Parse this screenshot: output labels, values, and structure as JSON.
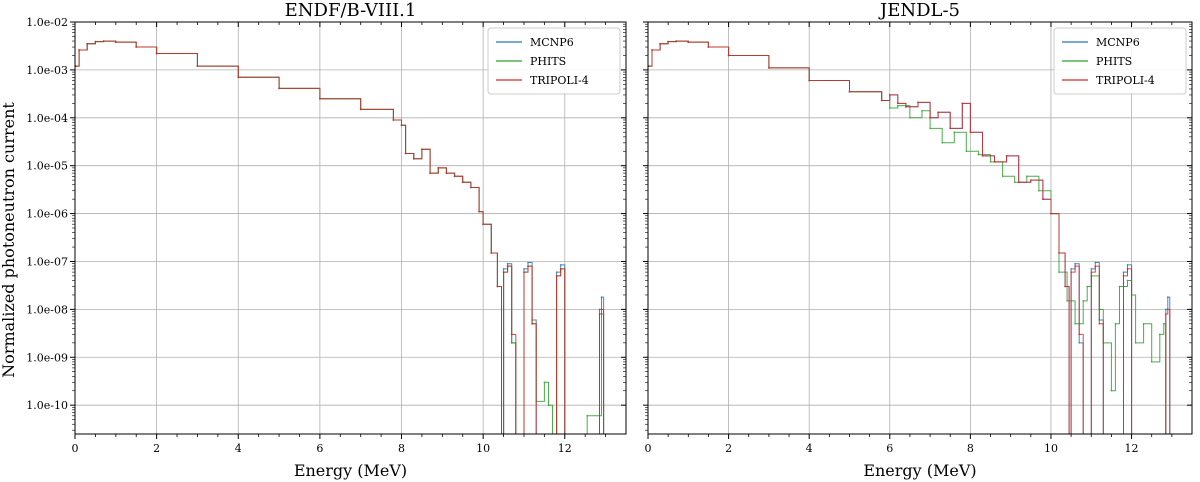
{
  "ylabel": "Normalized photoneutron current",
  "colors": {
    "MCNP6": "#1f77b4",
    "PHITS": "#2ca02c",
    "TRIPOLI-4": "#d62728"
  },
  "chart_data": [
    {
      "type": "line",
      "title": "ENDF/B-VIII.1",
      "xlabel": "Energy (MeV)",
      "ylabel": "Normalized photoneutron current",
      "xlim": [
        0,
        13.5
      ],
      "ylim": [
        2.5e-11,
        0.01
      ],
      "yscale": "log",
      "grid": true,
      "legend_position": "top-right",
      "xticks": [
        "0",
        "2",
        "4",
        "6",
        "8",
        "10",
        "12"
      ],
      "yticks": [
        "1.0e-10",
        "1.0e-09",
        "1.0e-08",
        "1.0e-07",
        "1.0e-06",
        "1.0e-05",
        "1.0e-04",
        "1.0e-03",
        "1.0e-02"
      ],
      "series": [
        {
          "name": "MCNP6",
          "x": [
            0.02,
            0.1,
            0.3,
            0.5,
            0.7,
            1,
            1.5,
            2,
            3,
            4,
            5,
            6,
            7,
            7.8,
            8,
            8.1,
            8.3,
            8.5,
            8.7,
            8.9,
            9.1,
            9.3,
            9.5,
            9.7,
            9.9,
            10,
            10.2,
            10.35,
            10.45,
            10.5,
            10.6,
            10.7,
            10.8,
            11,
            11.1,
            11.2,
            11.3,
            11.7,
            11.8,
            11.9,
            12.0,
            12.8,
            12.85,
            12.9,
            12.95
          ],
          "y": [
            0.0012,
            0.0026,
            0.0035,
            0.0039,
            0.004,
            0.0038,
            0.003,
            0.0022,
            0.0012,
            0.0007,
            0.00041,
            0.00025,
            0.00015,
            9e-05,
            7e-05,
            1.8e-05,
            1.4e-05,
            2.2e-05,
            7e-06,
            9e-06,
            7e-06,
            6e-06,
            4.5e-06,
            3.5e-06,
            1.1e-06,
            6e-07,
            1.5e-07,
            3e-08,
            2e-11,
            7e-08,
            9e-08,
            2e-09,
            2e-11,
            7e-08,
            9.5e-08,
            6e-09,
            2e-11,
            2e-11,
            6e-08,
            8.5e-08,
            2e-11,
            2e-11,
            1e-08,
            1.8e-08,
            2e-11
          ]
        },
        {
          "name": "PHITS",
          "x": [
            0.02,
            0.1,
            0.3,
            0.5,
            0.7,
            1,
            1.5,
            2,
            3,
            4,
            5,
            6,
            7,
            7.8,
            8,
            8.1,
            8.3,
            8.5,
            8.7,
            8.9,
            9.1,
            9.3,
            9.5,
            9.7,
            9.9,
            10,
            10.2,
            10.35,
            10.45,
            10.5,
            10.6,
            10.7,
            10.8,
            11,
            11.1,
            11.2,
            11.3,
            11.5,
            11.6,
            11.7,
            11.8,
            11.9,
            12.0,
            12.5,
            12.55,
            12.9,
            12.95
          ],
          "y": [
            0.0012,
            0.0026,
            0.0035,
            0.0039,
            0.004,
            0.0038,
            0.003,
            0.0022,
            0.0012,
            0.0007,
            0.00041,
            0.00025,
            0.00015,
            9e-05,
            7e-05,
            1.8e-05,
            1.4e-05,
            2.2e-05,
            7e-06,
            9e-06,
            7e-06,
            6e-06,
            4.5e-06,
            3.5e-06,
            1.1e-06,
            6e-07,
            1.5e-07,
            3e-08,
            2e-11,
            6e-08,
            8e-08,
            2e-09,
            2e-11,
            6e-08,
            8e-08,
            5e-09,
            1.2e-10,
            3e-10,
            1e-10,
            2e-11,
            5e-08,
            7e-08,
            2e-11,
            2e-11,
            6e-11,
            8e-09,
            2e-11
          ]
        },
        {
          "name": "TRIPOLI-4",
          "x": [
            0.02,
            0.1,
            0.3,
            0.5,
            0.7,
            1,
            1.5,
            2,
            3,
            4,
            5,
            6,
            7,
            7.8,
            8,
            8.1,
            8.3,
            8.5,
            8.7,
            8.9,
            9.1,
            9.3,
            9.5,
            9.7,
            9.9,
            10,
            10.2,
            10.35,
            10.45,
            10.5,
            10.6,
            10.7,
            10.8,
            11,
            11.1,
            11.2,
            11.3,
            11.7,
            11.8,
            11.9,
            12.0,
            12.8,
            12.85,
            12.9,
            12.95
          ],
          "y": [
            0.0012,
            0.0026,
            0.0035,
            0.0039,
            0.004,
            0.0038,
            0.003,
            0.0022,
            0.0012,
            0.0007,
            0.00041,
            0.00025,
            0.00015,
            9e-05,
            7e-05,
            1.8e-05,
            1.4e-05,
            2.2e-05,
            7e-06,
            9e-06,
            7e-06,
            6e-06,
            4.5e-06,
            3.5e-06,
            1.1e-06,
            6e-07,
            1.5e-07,
            3e-08,
            2e-11,
            6e-08,
            8e-08,
            3e-09,
            2e-11,
            6e-08,
            8e-08,
            5e-09,
            2e-11,
            2e-11,
            5e-08,
            7e-08,
            2e-11,
            2e-11,
            8e-09,
            1e-08,
            2e-11
          ]
        }
      ]
    },
    {
      "type": "line",
      "title": "JENDL-5",
      "xlabel": "Energy (MeV)",
      "ylabel": "Normalized photoneutron current",
      "xlim": [
        0,
        13.5
      ],
      "ylim": [
        2.5e-11,
        0.01
      ],
      "yscale": "log",
      "grid": true,
      "legend_position": "top-right",
      "xticks": [
        "0",
        "2",
        "4",
        "6",
        "8",
        "10",
        "12"
      ],
      "yticks": [
        "1.0e-10",
        "1.0e-09",
        "1.0e-08",
        "1.0e-07",
        "1.0e-06",
        "1.0e-05",
        "1.0e-04",
        "1.0e-03",
        "1.0e-02"
      ],
      "series": [
        {
          "name": "MCNP6",
          "x": [
            0.02,
            0.1,
            0.3,
            0.5,
            0.7,
            1,
            1.5,
            2,
            3,
            4,
            5,
            5.8,
            6,
            6.2,
            6.4,
            6.7,
            7,
            7.2,
            7.5,
            7.8,
            8,
            8.3,
            8.6,
            8.9,
            9.2,
            9.5,
            9.8,
            10,
            10.2,
            10.35,
            10.45,
            10.5,
            10.6,
            10.7,
            10.8,
            11,
            11.1,
            11.2,
            11.3,
            11.7,
            11.8,
            11.9,
            12.0,
            12.8,
            12.85,
            12.9,
            12.95
          ],
          "y": [
            0.0012,
            0.0026,
            0.0035,
            0.0039,
            0.004,
            0.0038,
            0.003,
            0.002,
            0.0011,
            0.0006,
            0.00035,
            0.00023,
            0.0003,
            0.0002,
            0.00017,
            0.00021,
            0.0001,
            0.00013,
            6e-05,
            0.0002,
            5e-05,
            1.6e-05,
            1.2e-05,
            1.6e-05,
            4.5e-06,
            5e-06,
            2e-06,
            1e-06,
            1.5e-07,
            3e-08,
            2e-11,
            7e-08,
            9e-08,
            2e-09,
            2e-11,
            7e-08,
            9.5e-08,
            6e-09,
            2e-11,
            2e-11,
            6e-08,
            8.5e-08,
            2e-11,
            2e-11,
            1e-08,
            1.8e-08,
            2e-11
          ]
        },
        {
          "name": "PHITS",
          "x": [
            0.02,
            0.1,
            0.3,
            0.5,
            0.7,
            1,
            1.5,
            2,
            3,
            4,
            5,
            5.8,
            6,
            6.2,
            6.5,
            6.8,
            7,
            7.3,
            7.6,
            7.9,
            8.2,
            8.5,
            8.8,
            9.1,
            9.4,
            9.7,
            10,
            10.2,
            10.4,
            10.6,
            10.8,
            10.9,
            11.0,
            11.2,
            11.3,
            11.5,
            11.6,
            11.7,
            11.9,
            12.0,
            12.1,
            12.3,
            12.5,
            12.7,
            12.8,
            12.85
          ],
          "y": [
            0.0012,
            0.0026,
            0.0035,
            0.0039,
            0.004,
            0.0038,
            0.003,
            0.002,
            0.0011,
            0.0006,
            0.00035,
            0.00023,
            0.00016,
            0.00018,
            0.0001,
            0.00014,
            6e-05,
            3e-05,
            5e-05,
            2e-05,
            1.7e-05,
            1.2e-05,
            6e-06,
            4.5e-06,
            6e-06,
            3e-06,
            1e-06,
            6e-08,
            1.5e-08,
            5e-09,
            1.5e-08,
            3e-08,
            5e-08,
            1e-08,
            2e-09,
            2e-10,
            5e-09,
            3e-08,
            4e-08,
            2e-08,
            2e-09,
            5e-09,
            8e-10,
            3e-09,
            5e-09,
            2e-11
          ]
        },
        {
          "name": "TRIPOLI-4",
          "x": [
            0.02,
            0.1,
            0.3,
            0.5,
            0.7,
            1,
            1.5,
            2,
            3,
            4,
            5,
            5.8,
            6,
            6.2,
            6.4,
            6.7,
            7,
            7.2,
            7.5,
            7.8,
            8,
            8.3,
            8.6,
            8.9,
            9.2,
            9.5,
            9.8,
            10,
            10.2,
            10.35,
            10.45,
            10.5,
            10.6,
            10.7,
            10.8,
            11,
            11.1,
            11.2,
            11.3,
            11.7,
            11.8,
            11.9,
            12.0,
            12.8,
            12.85,
            12.9,
            12.95
          ],
          "y": [
            0.0012,
            0.0026,
            0.0035,
            0.0039,
            0.004,
            0.0038,
            0.003,
            0.002,
            0.0011,
            0.0006,
            0.00035,
            0.00023,
            0.0003,
            0.0002,
            0.00017,
            0.00021,
            0.0001,
            0.00013,
            6e-05,
            0.0002,
            5e-05,
            1.6e-05,
            1.2e-05,
            1.6e-05,
            4.5e-06,
            5e-06,
            2e-06,
            1e-06,
            1.5e-07,
            3e-08,
            2e-11,
            6e-08,
            8e-08,
            3e-09,
            2e-11,
            6e-08,
            8e-08,
            5e-09,
            2e-11,
            2e-11,
            5e-08,
            7e-08,
            2e-11,
            2e-11,
            8e-09,
            1e-08,
            2e-11
          ]
        }
      ]
    }
  ]
}
